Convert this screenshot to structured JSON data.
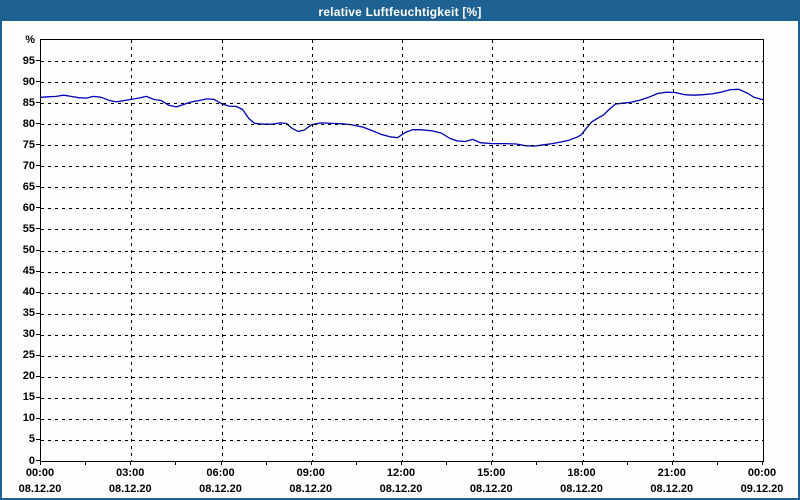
{
  "window": {
    "title": "relative Luftfeuchtigkeit [%]"
  },
  "colors": {
    "titlebar_bg": "#1e6294",
    "frame": "#1e6294",
    "plot_background": "#fdfefd",
    "plot_border": "#000000",
    "grid": "#000000",
    "line": "#0000b8",
    "label_text": "#000000",
    "title_text": "#ffffff"
  },
  "chart_data": {
    "type": "line",
    "title": "relative Luftfeuchtigkeit [%]",
    "ylabel": "%",
    "ytop_label": "%",
    "ylim": [
      0,
      100
    ],
    "yticks": [
      0,
      5,
      10,
      15,
      20,
      25,
      30,
      35,
      40,
      45,
      50,
      55,
      60,
      65,
      70,
      75,
      80,
      85,
      90,
      95
    ],
    "grid": true,
    "legend": "none",
    "x_hours_range": [
      0,
      24
    ],
    "x_major_step_hours": 3,
    "x_minor_step_hours": 1.5,
    "xticks": [
      {
        "time": "00:00",
        "date": "08.12.20"
      },
      {
        "time": "03:00",
        "date": "08.12.20"
      },
      {
        "time": "06:00",
        "date": "08.12.20"
      },
      {
        "time": "09:00",
        "date": "08.12.20"
      },
      {
        "time": "12:00",
        "date": "08.12.20"
      },
      {
        "time": "15:00",
        "date": "08.12.20"
      },
      {
        "time": "18:00",
        "date": "08.12.20"
      },
      {
        "time": "21:00",
        "date": "08.12.20"
      },
      {
        "time": "00:00",
        "date": "09.12.20"
      }
    ],
    "series": [
      {
        "name": "relative Luftfeuchtigkeit",
        "points": [
          [
            0,
            86.4
          ],
          [
            0.25,
            86.5
          ],
          [
            0.5,
            86.6
          ],
          [
            0.75,
            86.9
          ],
          [
            1,
            86.6
          ],
          [
            1.25,
            86.3
          ],
          [
            1.5,
            86.2
          ],
          [
            1.75,
            86.6
          ],
          [
            2,
            86.4
          ],
          [
            2.25,
            85.7
          ],
          [
            2.5,
            85.3
          ],
          [
            2.75,
            85.6
          ],
          [
            3,
            85.9
          ],
          [
            3.25,
            86.2
          ],
          [
            3.5,
            86.6
          ],
          [
            3.75,
            85.9
          ],
          [
            4,
            85.6
          ],
          [
            4.25,
            84.5
          ],
          [
            4.5,
            84.1
          ],
          [
            4.75,
            84.7
          ],
          [
            5,
            85.3
          ],
          [
            5.25,
            85.6
          ],
          [
            5.5,
            86.0
          ],
          [
            5.75,
            85.9
          ],
          [
            6,
            84.9
          ],
          [
            6.25,
            84.3
          ],
          [
            6.5,
            84.2
          ],
          [
            6.7,
            83.5
          ],
          [
            6.9,
            81.4
          ],
          [
            7.1,
            80.2
          ],
          [
            7.4,
            80.0
          ],
          [
            7.7,
            80.0
          ],
          [
            7.95,
            80.3
          ],
          [
            8.15,
            80.2
          ],
          [
            8.35,
            79.0
          ],
          [
            8.55,
            78.3
          ],
          [
            8.75,
            78.6
          ],
          [
            9,
            79.9
          ],
          [
            9.3,
            80.3
          ],
          [
            9.7,
            80.2
          ],
          [
            10,
            80.1
          ],
          [
            10.3,
            79.9
          ],
          [
            10.7,
            79.3
          ],
          [
            11,
            78.5
          ],
          [
            11.3,
            77.6
          ],
          [
            11.6,
            77.0
          ],
          [
            11.85,
            76.8
          ],
          [
            12.1,
            78.0
          ],
          [
            12.35,
            78.7
          ],
          [
            12.6,
            78.7
          ],
          [
            13,
            78.4
          ],
          [
            13.3,
            77.9
          ],
          [
            13.6,
            76.6
          ],
          [
            13.85,
            76.0
          ],
          [
            14.1,
            75.9
          ],
          [
            14.35,
            76.4
          ],
          [
            14.6,
            75.6
          ],
          [
            15,
            75.4
          ],
          [
            15.4,
            75.4
          ],
          [
            15.8,
            75.3
          ],
          [
            16.1,
            74.9
          ],
          [
            16.4,
            74.8
          ],
          [
            16.7,
            75.1
          ],
          [
            17,
            75.4
          ],
          [
            17.3,
            75.8
          ],
          [
            17.55,
            76.2
          ],
          [
            17.8,
            76.9
          ],
          [
            17.95,
            77.4
          ],
          [
            18.1,
            78.8
          ],
          [
            18.3,
            80.5
          ],
          [
            18.5,
            81.4
          ],
          [
            18.7,
            82.2
          ],
          [
            18.9,
            83.6
          ],
          [
            19.1,
            84.8
          ],
          [
            19.35,
            85.0
          ],
          [
            19.6,
            85.2
          ],
          [
            19.9,
            85.7
          ],
          [
            20.2,
            86.4
          ],
          [
            20.5,
            87.3
          ],
          [
            20.8,
            87.6
          ],
          [
            21.1,
            87.5
          ],
          [
            21.4,
            87.0
          ],
          [
            21.7,
            86.9
          ],
          [
            22,
            87.0
          ],
          [
            22.3,
            87.2
          ],
          [
            22.6,
            87.6
          ],
          [
            22.9,
            88.2
          ],
          [
            23.2,
            88.3
          ],
          [
            23.5,
            87.3
          ],
          [
            23.7,
            86.4
          ],
          [
            24,
            85.8
          ]
        ]
      }
    ]
  }
}
